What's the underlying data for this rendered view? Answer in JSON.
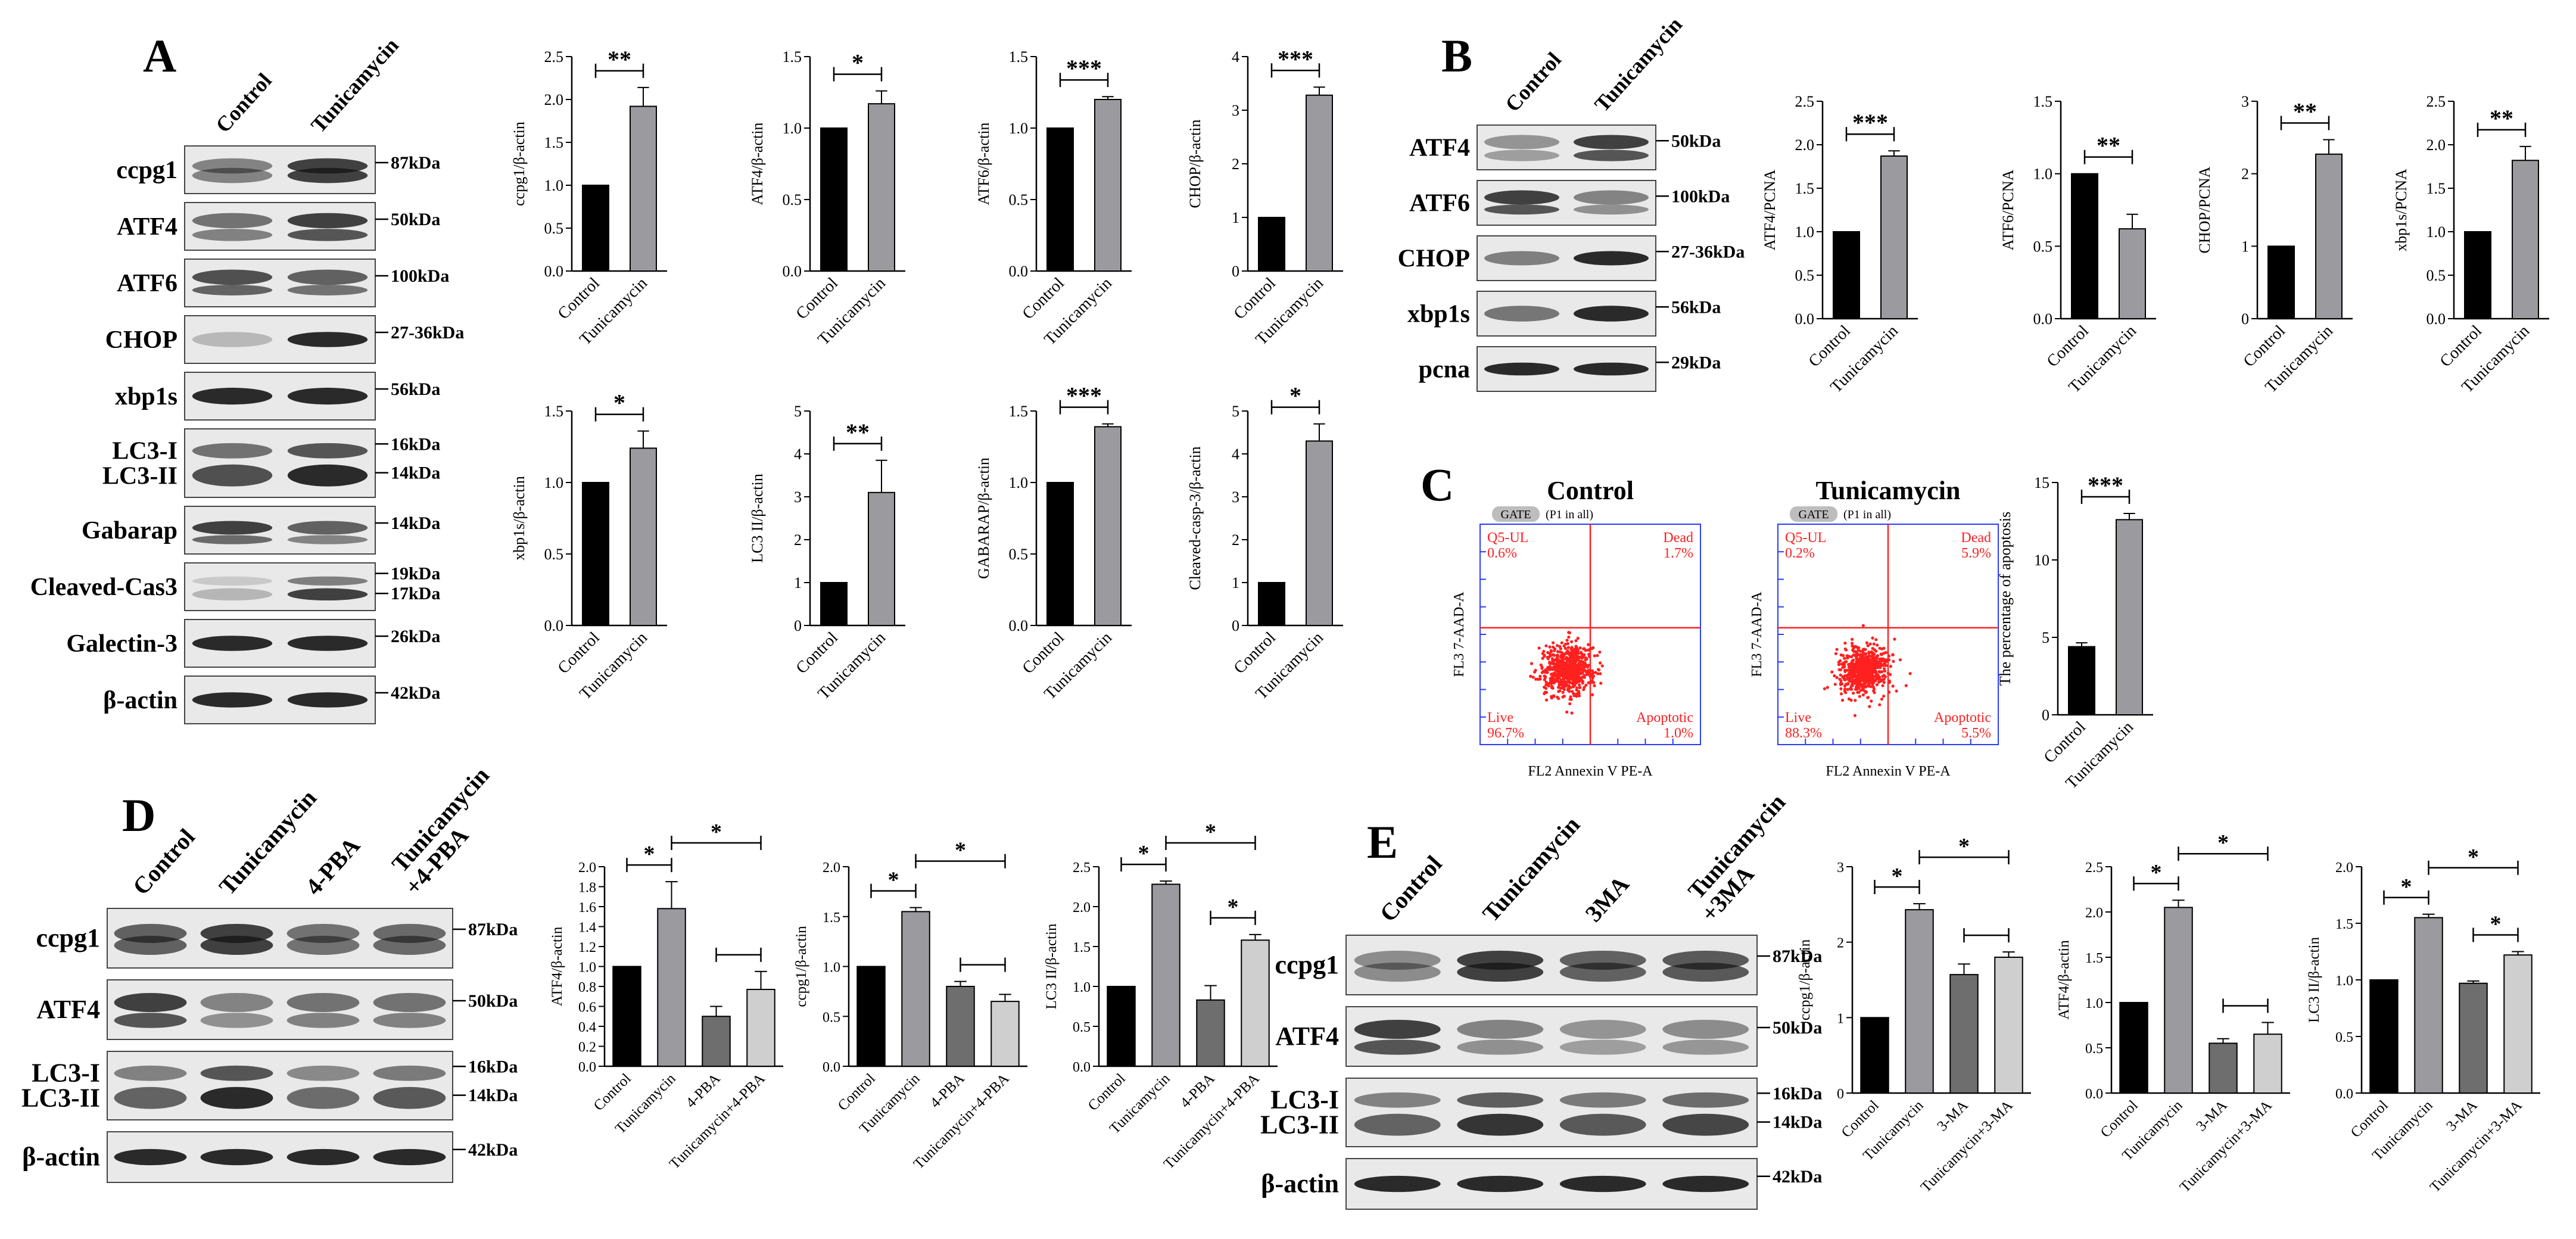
{
  "panels": {
    "A": {
      "letter": "A",
      "lanes": [
        "Control",
        "Tunicamycin"
      ],
      "blots": [
        {
          "label": "ccpg1",
          "kda": [
            "87kDa"
          ]
        },
        {
          "label": "ATF4",
          "kda": [
            "50kDa"
          ]
        },
        {
          "label": "ATF6",
          "kda": [
            "100kDa"
          ]
        },
        {
          "label": "CHOP",
          "kda": [
            "27-36kDa"
          ]
        },
        {
          "label": "xbp1s",
          "kda": [
            "56kDa"
          ]
        },
        {
          "label": "LC3-I\nLC3-II",
          "kda": [
            "16kDa",
            "14kDa"
          ]
        },
        {
          "label": "Gabarap",
          "kda": [
            "14kDa"
          ]
        },
        {
          "label": "Cleaved-Cas3",
          "kda": [
            "19kDa",
            "17kDa"
          ]
        },
        {
          "label": "Galectin-3",
          "kda": [
            "26kDa"
          ]
        },
        {
          "label": "β-actin",
          "kda": [
            "42kDa"
          ]
        }
      ]
    },
    "B": {
      "letter": "B",
      "lanes": [
        "Control",
        "Tunicamycin"
      ],
      "blots": [
        {
          "label": "ATF4",
          "kda": [
            "50kDa"
          ]
        },
        {
          "label": "ATF6",
          "kda": [
            "100kDa"
          ]
        },
        {
          "label": "CHOP",
          "kda": [
            "27-36kDa"
          ]
        },
        {
          "label": "xbp1s",
          "kda": [
            "56kDa"
          ]
        },
        {
          "label": "pcna",
          "kda": [
            "29kDa"
          ]
        }
      ]
    },
    "C": {
      "letter": "C",
      "flow": [
        {
          "title": "Control",
          "gate": "GATE",
          "gate_note": "(P1 in all)",
          "ul_name": "Q5-UL",
          "ul_pct": "0.6%",
          "ur_name": "Dead",
          "ur_pct": "1.7%",
          "ll_name": "Live",
          "ll_pct": "96.7%",
          "lr_name": "Apoptotic",
          "lr_pct": "1.0%",
          "xlabel": "FL2 Annexin V PE-A",
          "ylabel": "FL3 7-AAD-A"
        },
        {
          "title": "Tunicamycin",
          "gate": "GATE",
          "gate_note": "(P1 in all)",
          "ul_name": "Q5-UL",
          "ul_pct": "0.2%",
          "ur_name": "Dead",
          "ur_pct": "5.9%",
          "ll_name": "Live",
          "ll_pct": "88.3%",
          "lr_name": "Apoptotic",
          "lr_pct": "5.5%",
          "xlabel": "FL2 Annexin V PE-A",
          "ylabel": "FL3 7-AAD-A"
        }
      ]
    },
    "D": {
      "letter": "D",
      "lanes": [
        "Control",
        "Tunicamycin",
        "4-PBA",
        "Tunicamycin\n+4-PBA"
      ],
      "blots": [
        {
          "label": "ccpg1",
          "kda": [
            "87kDa"
          ]
        },
        {
          "label": "ATF4",
          "kda": [
            "50kDa"
          ]
        },
        {
          "label": "LC3-I\nLC3-II",
          "kda": [
            "16kDa",
            "14kDa"
          ]
        },
        {
          "label": "β-actin",
          "kda": [
            "42kDa"
          ]
        }
      ]
    },
    "E": {
      "letter": "E",
      "lanes": [
        "Control",
        "Tunicamycin",
        "3MA",
        "Tunicamycin\n+3MA"
      ],
      "blots": [
        {
          "label": "ccpg1",
          "kda": [
            "87kDa"
          ]
        },
        {
          "label": "ATF4",
          "kda": [
            "50kDa"
          ]
        },
        {
          "label": "LC3-I\nLC3-II",
          "kda": [
            "16kDa",
            "14kDa"
          ]
        },
        {
          "label": "β-actin",
          "kda": [
            "42kDa"
          ]
        }
      ]
    }
  },
  "colors": {
    "black": "#000000",
    "gray": "#9b9b9f",
    "dark_gray": "#6e6e6e",
    "light_gray": "#cfcfcf",
    "flow_red": "#ff2020",
    "flow_axis": "#2a3cff"
  },
  "chart_data": [
    {
      "type": "bar",
      "panel": "A",
      "ylabel": "ccpg1/β-actin",
      "categories": [
        "Control",
        "Tunicamycin"
      ],
      "values": [
        1.0,
        1.92
      ],
      "errors": [
        0,
        0.22
      ],
      "ylim": [
        0,
        2.5
      ],
      "yticks": [
        "0.0",
        "0.5",
        "1.0",
        "1.5",
        "2.0",
        "2.5"
      ],
      "comparisons": [
        {
          "from": 0,
          "to": 1,
          "label": "**"
        }
      ]
    },
    {
      "type": "bar",
      "panel": "A",
      "ylabel": "ATF4/β-actin",
      "categories": [
        "Control",
        "Tunicamycin"
      ],
      "values": [
        1.0,
        1.17
      ],
      "errors": [
        0,
        0.09
      ],
      "ylim": [
        0,
        1.5
      ],
      "yticks": [
        "0.0",
        "0.5",
        "1.0",
        "1.5"
      ],
      "comparisons": [
        {
          "from": 0,
          "to": 1,
          "label": "*"
        }
      ]
    },
    {
      "type": "bar",
      "panel": "A",
      "ylabel": "ATF6/β-actin",
      "categories": [
        "Control",
        "Tunicamycin"
      ],
      "values": [
        1.0,
        1.2
      ],
      "errors": [
        0,
        0.02
      ],
      "ylim": [
        0,
        1.5
      ],
      "yticks": [
        "0.0",
        "0.5",
        "1.0",
        "1.5"
      ],
      "comparisons": [
        {
          "from": 0,
          "to": 1,
          "label": "***"
        }
      ]
    },
    {
      "type": "bar",
      "panel": "A",
      "ylabel": "CHOP/β-actin",
      "categories": [
        "Control",
        "Tunicamycin"
      ],
      "values": [
        1.0,
        3.28
      ],
      "errors": [
        0,
        0.15
      ],
      "ylim": [
        0,
        4
      ],
      "yticks": [
        "0",
        "1",
        "2",
        "3",
        "4"
      ],
      "comparisons": [
        {
          "from": 0,
          "to": 1,
          "label": "***"
        }
      ]
    },
    {
      "type": "bar",
      "panel": "A",
      "ylabel": "xbp1s/β-actin",
      "categories": [
        "Control",
        "Tunicamycin"
      ],
      "values": [
        1.0,
        1.24
      ],
      "errors": [
        0,
        0.12
      ],
      "ylim": [
        0,
        1.5
      ],
      "yticks": [
        "0.0",
        "0.5",
        "1.0",
        "1.5"
      ],
      "comparisons": [
        {
          "from": 0,
          "to": 1,
          "label": "*"
        }
      ]
    },
    {
      "type": "bar",
      "panel": "A",
      "ylabel": "LC3 II/β-actin",
      "categories": [
        "Control",
        "Tunicamycin"
      ],
      "values": [
        1.0,
        3.1
      ],
      "errors": [
        0,
        0.75
      ],
      "ylim": [
        0,
        5
      ],
      "yticks": [
        "0",
        "1",
        "2",
        "3",
        "4",
        "5"
      ],
      "comparisons": [
        {
          "from": 0,
          "to": 1,
          "label": "**"
        }
      ]
    },
    {
      "type": "bar",
      "panel": "A",
      "ylabel": "GABARAP/β-actin",
      "categories": [
        "Control",
        "Tunicamycin"
      ],
      "values": [
        1.0,
        1.39
      ],
      "errors": [
        0,
        0.02
      ],
      "ylim": [
        0,
        1.5
      ],
      "yticks": [
        "0.0",
        "0.5",
        "1.0",
        "1.5"
      ],
      "comparisons": [
        {
          "from": 0,
          "to": 1,
          "label": "***"
        }
      ]
    },
    {
      "type": "bar",
      "panel": "A",
      "ylabel": "Cleaved-casp-3/β-actin",
      "categories": [
        "Control",
        "Tunicamycin"
      ],
      "values": [
        1.0,
        4.3
      ],
      "errors": [
        0,
        0.4
      ],
      "ylim": [
        0,
        5
      ],
      "yticks": [
        "0",
        "1",
        "2",
        "3",
        "4",
        "5"
      ],
      "comparisons": [
        {
          "from": 0,
          "to": 1,
          "label": "*"
        }
      ]
    },
    {
      "type": "bar",
      "panel": "B",
      "ylabel": "ATF4/PCNA",
      "categories": [
        "Control",
        "Tunicamycin"
      ],
      "values": [
        1.0,
        1.87
      ],
      "errors": [
        0,
        0.06
      ],
      "ylim": [
        0,
        2.5
      ],
      "yticks": [
        "0.0",
        "0.5",
        "1.0",
        "1.5",
        "2.0",
        "2.5"
      ],
      "comparisons": [
        {
          "from": 0,
          "to": 1,
          "label": "***"
        }
      ]
    },
    {
      "type": "bar",
      "panel": "B",
      "ylabel": "ATF6/PCNA",
      "categories": [
        "Control",
        "Tunicamycin"
      ],
      "values": [
        1.0,
        0.62
      ],
      "errors": [
        0,
        0.1
      ],
      "ylim": [
        0,
        1.5
      ],
      "yticks": [
        "0.0",
        "0.5",
        "1.0",
        "1.5"
      ],
      "comparisons": [
        {
          "from": 0,
          "to": 1,
          "label": "**"
        }
      ]
    },
    {
      "type": "bar",
      "panel": "B",
      "ylabel": "CHOP/PCNA",
      "categories": [
        "Control",
        "Tunicamycin"
      ],
      "values": [
        1.0,
        2.27
      ],
      "errors": [
        0,
        0.2
      ],
      "ylim": [
        0,
        3
      ],
      "yticks": [
        "0",
        "1",
        "2",
        "3"
      ],
      "comparisons": [
        {
          "from": 0,
          "to": 1,
          "label": "**"
        }
      ]
    },
    {
      "type": "bar",
      "panel": "B",
      "ylabel": "xbp1s/PCNA",
      "categories": [
        "Control",
        "Tunicamycin"
      ],
      "values": [
        1.0,
        1.82
      ],
      "errors": [
        0,
        0.16
      ],
      "ylim": [
        0,
        2.5
      ],
      "yticks": [
        "0.0",
        "0.5",
        "1.0",
        "1.5",
        "2.0",
        "2.5"
      ],
      "comparisons": [
        {
          "from": 0,
          "to": 1,
          "label": "**"
        }
      ]
    },
    {
      "type": "bar",
      "panel": "C",
      "ylabel": "The percentage of apoptosis",
      "categories": [
        "Control",
        "Tunicamycin"
      ],
      "values": [
        4.4,
        12.6
      ],
      "errors": [
        0.25,
        0.4
      ],
      "ylim": [
        0,
        15
      ],
      "yticks": [
        "0",
        "5",
        "10",
        "15"
      ],
      "comparisons": [
        {
          "from": 0,
          "to": 1,
          "label": "***"
        }
      ]
    },
    {
      "type": "bar",
      "panel": "D",
      "ylabel": "ATF4/β-actin",
      "categories": [
        "Control",
        "Tunicamycin",
        "4-PBA",
        "Tunicamycin+4-PBA"
      ],
      "values": [
        1.0,
        1.58,
        0.5,
        0.77
      ],
      "errors": [
        0,
        0.27,
        0.1,
        0.18
      ],
      "ylim": [
        0,
        2.0
      ],
      "yticks": [
        "0.0",
        "0.2",
        "0.4",
        "0.6",
        "0.8",
        "1.0",
        "1.2",
        "1.4",
        "1.6",
        "1.8",
        "2.0"
      ],
      "comparisons": [
        {
          "from": 0,
          "to": 1,
          "label": "*"
        },
        {
          "from": 1,
          "to": 3,
          "label": "*"
        },
        {
          "from": 2,
          "to": 3,
          "label": ""
        }
      ]
    },
    {
      "type": "bar",
      "panel": "D",
      "ylabel": "ccpg1/β-actin",
      "categories": [
        "Control",
        "Tunicamycin",
        "4-PBA",
        "Tunicamycin+4-PBA"
      ],
      "values": [
        1.0,
        1.55,
        0.8,
        0.65
      ],
      "errors": [
        0,
        0.04,
        0.05,
        0.07
      ],
      "ylim": [
        0,
        2.0
      ],
      "yticks": [
        "0.0",
        "0.5",
        "1.0",
        "1.5",
        "2.0"
      ],
      "comparisons": [
        {
          "from": 0,
          "to": 1,
          "label": "*"
        },
        {
          "from": 1,
          "to": 3,
          "label": "*"
        },
        {
          "from": 2,
          "to": 3,
          "label": ""
        }
      ]
    },
    {
      "type": "bar",
      "panel": "D",
      "ylabel": "LC3 II/β-actin",
      "categories": [
        "Control",
        "Tunicamycin",
        "4-PBA",
        "Tunicamycin+4-PBA"
      ],
      "values": [
        1.0,
        2.28,
        0.83,
        1.58
      ],
      "errors": [
        0,
        0.04,
        0.18,
        0.07
      ],
      "ylim": [
        0,
        2.5
      ],
      "yticks": [
        "0.0",
        "0.5",
        "1.0",
        "1.5",
        "2.0",
        "2.5"
      ],
      "comparisons": [
        {
          "from": 0,
          "to": 1,
          "label": "*"
        },
        {
          "from": 1,
          "to": 3,
          "label": "*"
        },
        {
          "from": 2,
          "to": 3,
          "label": "*"
        }
      ]
    },
    {
      "type": "bar",
      "panel": "E",
      "ylabel": "ccpg1/β-actin",
      "categories": [
        "Control",
        "Tunicamycin",
        "3-MA",
        "Tunicamycin+3-MA"
      ],
      "values": [
        1.0,
        2.43,
        1.57,
        1.8
      ],
      "errors": [
        0,
        0.08,
        0.14,
        0.07
      ],
      "ylim": [
        0,
        3
      ],
      "yticks": [
        "0",
        "1",
        "2",
        "3"
      ],
      "comparisons": [
        {
          "from": 0,
          "to": 1,
          "label": "*"
        },
        {
          "from": 1,
          "to": 3,
          "label": "*"
        },
        {
          "from": 2,
          "to": 3,
          "label": ""
        }
      ]
    },
    {
      "type": "bar",
      "panel": "E",
      "ylabel": "ATF4/β-actin",
      "categories": [
        "Control",
        "Tunicamycin",
        "3-MA",
        "Tunicamycin+3-MA"
      ],
      "values": [
        1.0,
        2.05,
        0.55,
        0.65
      ],
      "errors": [
        0,
        0.08,
        0.05,
        0.13
      ],
      "ylim": [
        0,
        2.5
      ],
      "yticks": [
        "0.0",
        "0.5",
        "1.0",
        "1.5",
        "2.0",
        "2.5"
      ],
      "comparisons": [
        {
          "from": 0,
          "to": 1,
          "label": "*"
        },
        {
          "from": 1,
          "to": 3,
          "label": "*"
        },
        {
          "from": 2,
          "to": 3,
          "label": ""
        }
      ]
    },
    {
      "type": "bar",
      "panel": "E",
      "ylabel": "LC3 II/β-actin",
      "categories": [
        "Control",
        "Tunicamycin",
        "3-MA",
        "Tunicamycin+3-MA"
      ],
      "values": [
        1.0,
        1.55,
        0.97,
        1.22
      ],
      "errors": [
        0,
        0.03,
        0.02,
        0.03
      ],
      "ylim": [
        0,
        2.0
      ],
      "yticks": [
        "0.0",
        "0.5",
        "1.0",
        "1.5",
        "2.0"
      ],
      "comparisons": [
        {
          "from": 0,
          "to": 1,
          "label": "*"
        },
        {
          "from": 1,
          "to": 3,
          "label": "*"
        },
        {
          "from": 2,
          "to": 3,
          "label": "*"
        }
      ]
    }
  ]
}
